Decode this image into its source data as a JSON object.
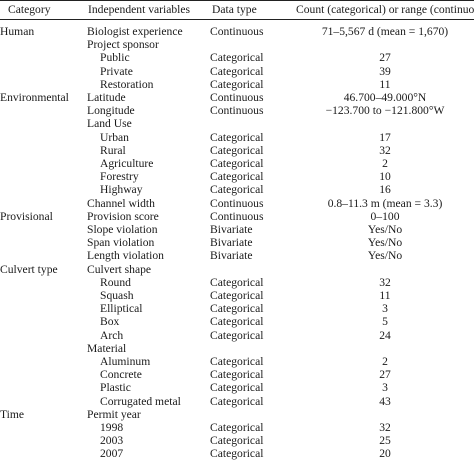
{
  "header": {
    "category": "Category",
    "variable": "Independent variables",
    "data_type": "Data type",
    "count": "Count (categorical) or range (continuous)"
  },
  "rows": [
    {
      "category": "Human",
      "variable": "Biologist experience",
      "indent": false,
      "data_type": "Continuous",
      "count": "71–5,567 d (mean = 1,670)"
    },
    {
      "category": "",
      "variable": "Project sponsor",
      "indent": false,
      "data_type": "",
      "count": ""
    },
    {
      "category": "",
      "variable": "Public",
      "indent": true,
      "data_type": "Categorical",
      "count": "27"
    },
    {
      "category": "",
      "variable": "Private",
      "indent": true,
      "data_type": "Categorical",
      "count": "39"
    },
    {
      "category": "",
      "variable": "Restoration",
      "indent": true,
      "data_type": "Categorical",
      "count": "11"
    },
    {
      "category": "Environmental",
      "variable": "Latitude",
      "indent": false,
      "data_type": "Continuous",
      "count": "46.700–49.000°N"
    },
    {
      "category": "",
      "variable": "Longitude",
      "indent": false,
      "data_type": "Continuous",
      "count": "−123.700 to −121.800°W"
    },
    {
      "category": "",
      "variable": "Land Use",
      "indent": false,
      "data_type": "",
      "count": ""
    },
    {
      "category": "",
      "variable": "Urban",
      "indent": true,
      "data_type": "Categorical",
      "count": "17"
    },
    {
      "category": "",
      "variable": "Rural",
      "indent": true,
      "data_type": "Categorical",
      "count": "32"
    },
    {
      "category": "",
      "variable": "Agriculture",
      "indent": true,
      "data_type": "Categorical",
      "count": "2"
    },
    {
      "category": "",
      "variable": "Forestry",
      "indent": true,
      "data_type": "Categorical",
      "count": "10"
    },
    {
      "category": "",
      "variable": "Highway",
      "indent": true,
      "data_type": "Categorical",
      "count": "16"
    },
    {
      "category": "",
      "variable": "Channel width",
      "indent": false,
      "data_type": "Continuous",
      "count": "0.8–11.3 m (mean = 3.3)"
    },
    {
      "category": "Provisional",
      "variable": "Provision score",
      "indent": false,
      "data_type": "Continuous",
      "count": "0–100"
    },
    {
      "category": "",
      "variable": "Slope violation",
      "indent": false,
      "data_type": "Bivariate",
      "count": "Yes/No"
    },
    {
      "category": "",
      "variable": "Span violation",
      "indent": false,
      "data_type": "Bivariate",
      "count": "Yes/No"
    },
    {
      "category": "",
      "variable": "Length violation",
      "indent": false,
      "data_type": "Bivariate",
      "count": "Yes/No"
    },
    {
      "category": "Culvert type",
      "variable": "Culvert shape",
      "indent": false,
      "data_type": "",
      "count": ""
    },
    {
      "category": "",
      "variable": "Round",
      "indent": true,
      "data_type": "Categorical",
      "count": "32"
    },
    {
      "category": "",
      "variable": "Squash",
      "indent": true,
      "data_type": "Categorical",
      "count": "11"
    },
    {
      "category": "",
      "variable": "Elliptical",
      "indent": true,
      "data_type": "Categorical",
      "count": "3"
    },
    {
      "category": "",
      "variable": "Box",
      "indent": true,
      "data_type": "Categorical",
      "count": "5"
    },
    {
      "category": "",
      "variable": "Arch",
      "indent": true,
      "data_type": "Categorical",
      "count": "24"
    },
    {
      "category": "",
      "variable": "Material",
      "indent": false,
      "data_type": "",
      "count": ""
    },
    {
      "category": "",
      "variable": "Aluminum",
      "indent": true,
      "data_type": "Categorical",
      "count": "2"
    },
    {
      "category": "",
      "variable": "Concrete",
      "indent": true,
      "data_type": "Categorical",
      "count": "27"
    },
    {
      "category": "",
      "variable": "Plastic",
      "indent": true,
      "data_type": "Categorical",
      "count": "3"
    },
    {
      "category": "",
      "variable": "Corrugated metal",
      "indent": true,
      "data_type": "Categorical",
      "count": "43"
    },
    {
      "category": "Time",
      "variable": "Permit year",
      "indent": false,
      "data_type": "",
      "count": ""
    },
    {
      "category": "",
      "variable": "1998",
      "indent": true,
      "data_type": "Categorical",
      "count": "32"
    },
    {
      "category": "",
      "variable": "2003",
      "indent": true,
      "data_type": "Categorical",
      "count": "25"
    },
    {
      "category": "",
      "variable": "2007",
      "indent": true,
      "data_type": "Categorical",
      "count": "20"
    }
  ]
}
